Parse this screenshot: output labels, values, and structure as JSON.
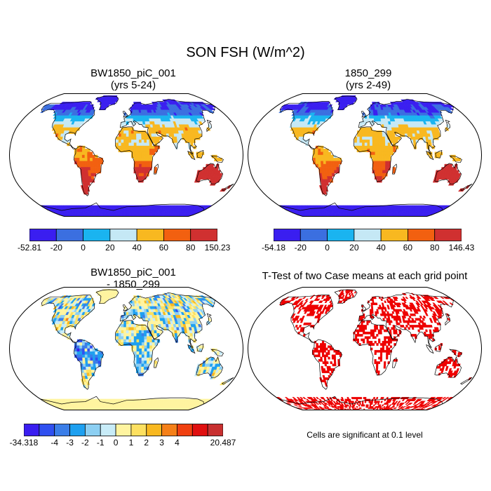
{
  "title": "SON FSH (W/m^2)",
  "panels": [
    {
      "id": "case1",
      "title": "BW1850_piC_001",
      "subtitle": "(yrs 5-24)",
      "colorbar": {
        "labels": [
          "-52.81",
          "-20",
          "0",
          "20",
          "40",
          "60",
          "80",
          "150.23"
        ],
        "colors": [
          "#3a1ef0",
          "#3b6fe0",
          "#1ab4f0",
          "#c5e8f5",
          "#f8b820",
          "#f26010",
          "#d03030"
        ]
      }
    },
    {
      "id": "case2",
      "title": "1850_299",
      "subtitle": "(yrs 2-49)",
      "colorbar": {
        "labels": [
          "-54.18",
          "-20",
          "0",
          "20",
          "40",
          "60",
          "80",
          "146.43"
        ],
        "colors": [
          "#3a1ef0",
          "#3b6fe0",
          "#1ab4f0",
          "#c5e8f5",
          "#f8b820",
          "#f26010",
          "#d03030"
        ]
      }
    },
    {
      "id": "diff",
      "title": "BW1850_piC_001",
      "subtitle": "- 1850_299",
      "colorbar": {
        "labels": [
          "-34.318",
          "-4",
          "-3",
          "-2",
          "-1",
          "0",
          "1",
          "2",
          "3",
          "4",
          "20.487"
        ],
        "colors": [
          "#3a1ef0",
          "#3050f0",
          "#3b7ee8",
          "#1ea0f0",
          "#8ccff2",
          "#c8ecf8",
          "#fff4a0",
          "#fde060",
          "#f8b820",
          "#f58018",
          "#f04010",
          "#e01010",
          "#c83030"
        ]
      }
    },
    {
      "id": "ttest",
      "title": "T-Test of two Case means at each grid point",
      "note": "Cells are significant at 0.1 level",
      "sig_color": "#ee0000"
    }
  ]
}
